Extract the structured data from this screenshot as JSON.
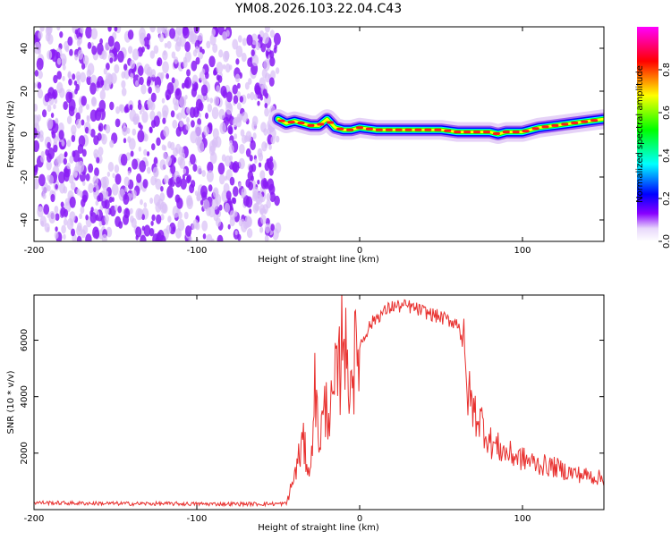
{
  "title": "YM08.2026.103.22.04.C43",
  "colorbar": {
    "label": "Normalized spectral amplitude",
    "ticks": [
      "0.0",
      "0.2",
      "0.4",
      "0.6",
      "0.8"
    ],
    "range": [
      0,
      1
    ]
  },
  "chart_data": [
    {
      "type": "heatmap",
      "xlabel": "Height of straight line (km)",
      "ylabel": "Frequency (Hz)",
      "xlim": [
        -200,
        150
      ],
      "ylim": [
        -50,
        50
      ],
      "xticks": [
        "-200",
        "-100",
        "0",
        "100"
      ],
      "yticks": [
        "40",
        "20",
        "0",
        "-20",
        "-40"
      ],
      "colormap": [
        "#ffffff",
        "#e6d3f7",
        "#8800ff",
        "#0000ff",
        "#00ffff",
        "#00ff00",
        "#ffff00",
        "#ff0000",
        "#ff00ff"
      ],
      "noise_region_x": [
        -200,
        -50
      ],
      "ridge": {
        "x": [
          -50,
          -45,
          -40,
          -35,
          -30,
          -25,
          -20,
          -15,
          -10,
          -5,
          0,
          10,
          20,
          30,
          40,
          50,
          60,
          70,
          80,
          85,
          90,
          100,
          110,
          120,
          130,
          140,
          150
        ],
        "y": [
          7,
          5,
          6,
          5,
          4,
          4,
          7,
          3,
          2,
          2,
          3,
          2,
          2,
          2,
          2,
          2,
          1,
          1,
          1,
          0,
          1,
          1,
          3,
          4,
          5,
          6,
          7
        ]
      }
    },
    {
      "type": "line",
      "xlabel": "Height of straight line (km)",
      "ylabel": "SNR (10 * v/v)",
      "xlim": [
        -200,
        150
      ],
      "ylim": [
        0,
        7600
      ],
      "xticks": [
        "-200",
        "-100",
        "0",
        "100"
      ],
      "yticks": [
        "6000",
        "4000",
        "2000"
      ],
      "color": "#e8302e",
      "series": [
        {
          "x": [
            -200,
            -180,
            -160,
            -140,
            -120,
            -100,
            -80,
            -60,
            -45,
            -40,
            -35,
            -30,
            -28,
            -25,
            -22,
            -20,
            -17,
            -15,
            -12,
            -10,
            -8,
            -5,
            0,
            5,
            10,
            15,
            20,
            25,
            30,
            35,
            40,
            45,
            50,
            55,
            60,
            63,
            65,
            70,
            75,
            80,
            90,
            100,
            110,
            120,
            130,
            140,
            150
          ],
          "y": [
            250,
            230,
            220,
            210,
            210,
            200,
            200,
            200,
            210,
            1200,
            2400,
            1200,
            4600,
            2500,
            3300,
            3800,
            3400,
            4400,
            5000,
            7400,
            4700,
            4900,
            5800,
            6400,
            6800,
            7000,
            7200,
            7200,
            7200,
            7100,
            7000,
            6900,
            6800,
            6700,
            6600,
            6500,
            4500,
            3500,
            3100,
            2400,
            2000,
            1800,
            1600,
            1500,
            1300,
            1200,
            1100
          ]
        }
      ]
    }
  ]
}
